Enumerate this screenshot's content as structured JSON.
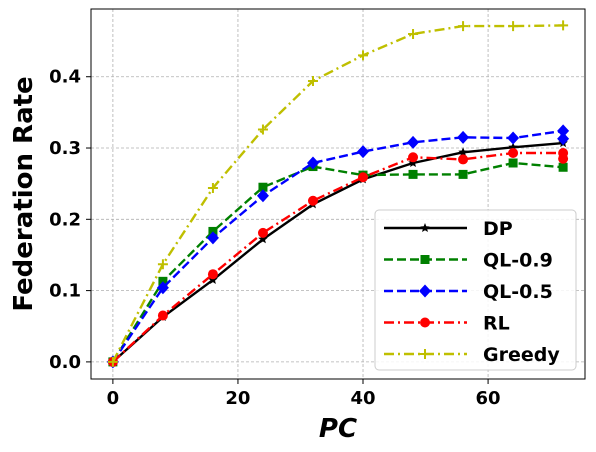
{
  "chart_data": {
    "type": "line",
    "xlabel": "PC",
    "ylabel": "Federation Rate",
    "xlim": [
      -3.5,
      75.5
    ],
    "ylim": [
      -0.024,
      0.495
    ],
    "xticks": [
      0,
      20,
      40,
      60
    ],
    "xtick_labels": [
      "0",
      "20",
      "40",
      "60"
    ],
    "yticks": [
      0.0,
      0.1,
      0.2,
      0.3,
      0.4
    ],
    "ytick_labels": [
      "0.0",
      "0.1",
      "0.2",
      "0.3",
      "0.4"
    ],
    "grid": true,
    "legend_position": "lower-right",
    "x": [
      0,
      8,
      16,
      24,
      32,
      40,
      48,
      56,
      64,
      72
    ],
    "series": [
      {
        "name": "DP",
        "color": "#000000",
        "dash": "solid",
        "marker": "star",
        "values": [
          0.0,
          0.063,
          0.115,
          0.172,
          0.221,
          0.256,
          0.279,
          0.294,
          0.301,
          0.307
        ]
      },
      {
        "name": "QL-0.9",
        "color": "#008000",
        "dash": "dashed",
        "marker": "square",
        "values": [
          0.0,
          0.113,
          0.183,
          0.245,
          0.274,
          0.262,
          0.263,
          0.263,
          0.279,
          0.273
        ]
      },
      {
        "name": "QL-0.5",
        "color": "#0000ff",
        "dash": "dashed",
        "marker": "diamond",
        "values": [
          0.0,
          0.104,
          0.174,
          0.233,
          0.279,
          0.295,
          0.308,
          0.315,
          0.314,
          0.324
        ],
        "extra_points": [
          [
            72,
            0.313
          ]
        ]
      },
      {
        "name": "RL",
        "color": "#ff0000",
        "dash": "dashdot",
        "marker": "circle",
        "values": [
          0.0,
          0.065,
          0.123,
          0.181,
          0.226,
          0.259,
          0.287,
          0.284,
          0.293,
          0.293
        ],
        "extra_points": [
          [
            72,
            0.285
          ]
        ]
      },
      {
        "name": "Greedy",
        "color": "#bfbf00",
        "dash": "dashdot",
        "marker": "plus",
        "values": [
          0.0,
          0.137,
          0.244,
          0.326,
          0.394,
          0.43,
          0.46,
          0.471,
          0.471,
          0.472
        ]
      }
    ]
  }
}
